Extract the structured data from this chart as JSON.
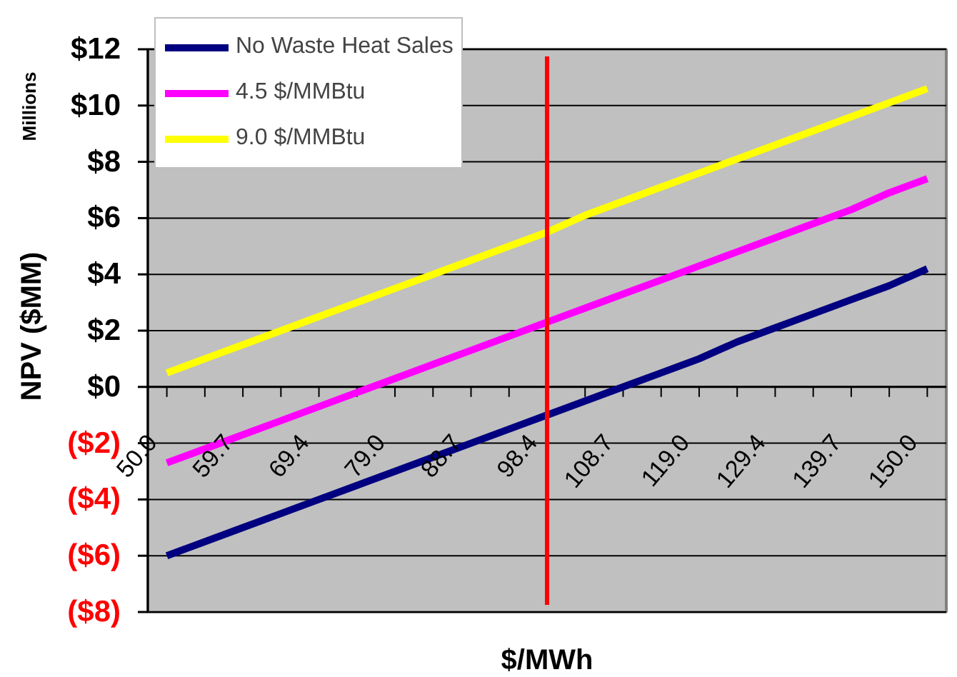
{
  "chart_data": {
    "type": "line",
    "xlabel": "$/MWh",
    "ylabel": "NPV ($MM)",
    "annotations": [
      "Millions"
    ],
    "categories": [
      "50.0",
      null,
      "59.7",
      null,
      "69.4",
      null,
      "79.0",
      null,
      "88.7",
      null,
      "98.4",
      null,
      "108.7",
      null,
      "119.0",
      null,
      "129.4",
      null,
      "139.7",
      null,
      "150.0"
    ],
    "series": [
      {
        "name": "No Waste Heat Sales",
        "color": "#000080",
        "values": [
          -6.0,
          -5.5,
          -5.0,
          -4.5,
          -4.0,
          -3.5,
          -3.0,
          -2.5,
          -2.0,
          -1.5,
          -1.0,
          -0.5,
          0.0,
          0.5,
          1.0,
          1.6,
          2.1,
          2.6,
          3.1,
          3.6,
          4.2
        ]
      },
      {
        "name": "4.5 $/MMBtu",
        "color": "#ff00ff",
        "values": [
          -2.7,
          -2.2,
          -1.7,
          -1.2,
          -0.7,
          -0.2,
          0.3,
          0.8,
          1.3,
          1.8,
          2.3,
          2.8,
          3.3,
          3.8,
          4.3,
          4.8,
          5.3,
          5.8,
          6.3,
          6.9,
          7.4
        ]
      },
      {
        "name": "9.0 $/MMBtu",
        "color": "#ffff00",
        "values": [
          0.5,
          1.0,
          1.5,
          2.0,
          2.5,
          3.0,
          3.5,
          4.0,
          4.5,
          5.0,
          5.5,
          6.1,
          6.6,
          7.1,
          7.6,
          8.1,
          8.6,
          9.1,
          9.6,
          10.1,
          10.6
        ]
      }
    ],
    "ylim": [
      -8,
      12
    ],
    "yticks": [
      {
        "value": 12,
        "label": "$12"
      },
      {
        "value": 10,
        "label": "$10"
      },
      {
        "value": 8,
        "label": "$8"
      },
      {
        "value": 6,
        "label": "$6"
      },
      {
        "value": 4,
        "label": "$4"
      },
      {
        "value": 2,
        "label": "$2"
      },
      {
        "value": 0,
        "label": "$0"
      },
      {
        "value": -2,
        "label": "($2)"
      },
      {
        "value": -4,
        "label": "($4)"
      },
      {
        "value": -6,
        "label": "($6)"
      },
      {
        "value": -8,
        "label": "($8)"
      }
    ],
    "ref_lines": [
      {
        "axis": "x",
        "value": "98.4",
        "color": "#ff0000"
      }
    ],
    "grid": "y",
    "legend": "top left",
    "marker": "none",
    "line_style": "solid"
  }
}
